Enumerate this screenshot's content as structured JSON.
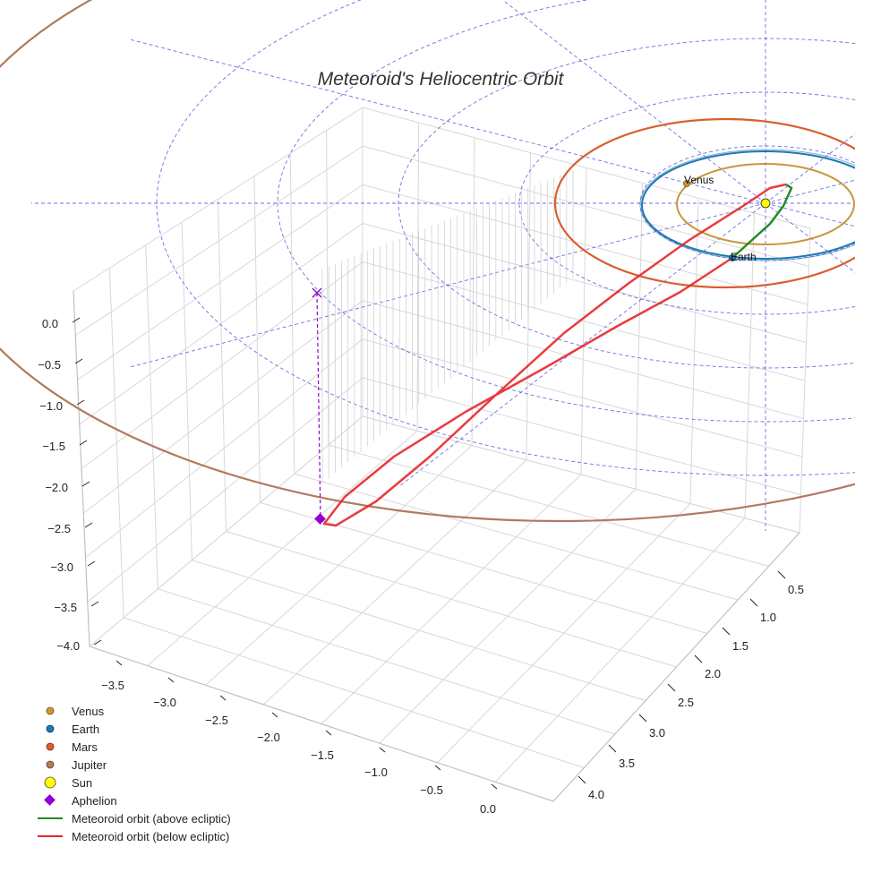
{
  "chart_data": {
    "type": "line",
    "projection": "3d",
    "title": "Meteoroid's Heliocentric Orbit",
    "xlabel": "",
    "ylabel": "",
    "zlabel": "",
    "grid": true,
    "legend_position": "bottom-left",
    "x_axis": {
      "ticks": [
        -3.5,
        -3.0,
        -2.5,
        -2.0,
        -1.5,
        -1.0,
        -0.5,
        0.0
      ],
      "tick_labels": [
        "−3.5",
        "−3.0",
        "−2.5",
        "−2.0",
        "−1.5",
        "−1.0",
        "−0.5",
        "0.0"
      ]
    },
    "y_axis": {
      "ticks": [
        0.5,
        1.0,
        1.5,
        2.0,
        2.5,
        3.0,
        3.5,
        4.0
      ],
      "tick_labels": [
        "0.5",
        "1.0",
        "1.5",
        "2.0",
        "2.5",
        "3.0",
        "3.5",
        "4.0"
      ]
    },
    "z_axis": {
      "ticks": [
        0.0,
        -0.5,
        -1.0,
        -1.5,
        -2.0,
        -2.5,
        -3.0,
        -3.5,
        -4.0
      ],
      "tick_labels": [
        "0.0",
        "−0.5",
        "−1.0",
        "−1.5",
        "−2.0",
        "−2.5",
        "−3.0",
        "−3.5",
        "−4.0"
      ]
    },
    "series": [
      {
        "name": "Venus",
        "kind": "planet-orbit",
        "semi_major_axis_au": 0.72,
        "color": "#c8963c"
      },
      {
        "name": "Earth",
        "kind": "planet-orbit",
        "semi_major_axis_au": 1.0,
        "color": "#1f77b4"
      },
      {
        "name": "Mars",
        "kind": "planet-orbit",
        "semi_major_axis_au": 1.52,
        "color": "#d95f2e"
      },
      {
        "name": "Jupiter",
        "kind": "planet-orbit",
        "semi_major_axis_au": 5.2,
        "color": "#b07a5e"
      },
      {
        "name": "Sun",
        "kind": "marker",
        "position": [
          0,
          0,
          0
        ],
        "color": "#ffff00"
      },
      {
        "name": "Aphelion",
        "kind": "marker",
        "position": [
          -3.6,
          0.2,
          -2.5
        ],
        "color": "#9400d3"
      },
      {
        "name": "Meteoroid orbit (above ecliptic)",
        "kind": "orbit-segment",
        "color": "#228b22"
      },
      {
        "name": "Meteoroid orbit (below ecliptic)",
        "kind": "orbit-segment",
        "color": "#e8262a"
      }
    ],
    "annotations": [
      "Venus",
      "Earth"
    ],
    "colors": {
      "venus": "#c8963c",
      "earth": "#1f77b4",
      "mars": "#d95f2e",
      "jupiter": "#b07a5e",
      "sun": "#ffff00",
      "aphelion": "#9400d3",
      "above": "#228b22",
      "below": "#e8262a",
      "reference_grid": "#5555dd"
    }
  }
}
